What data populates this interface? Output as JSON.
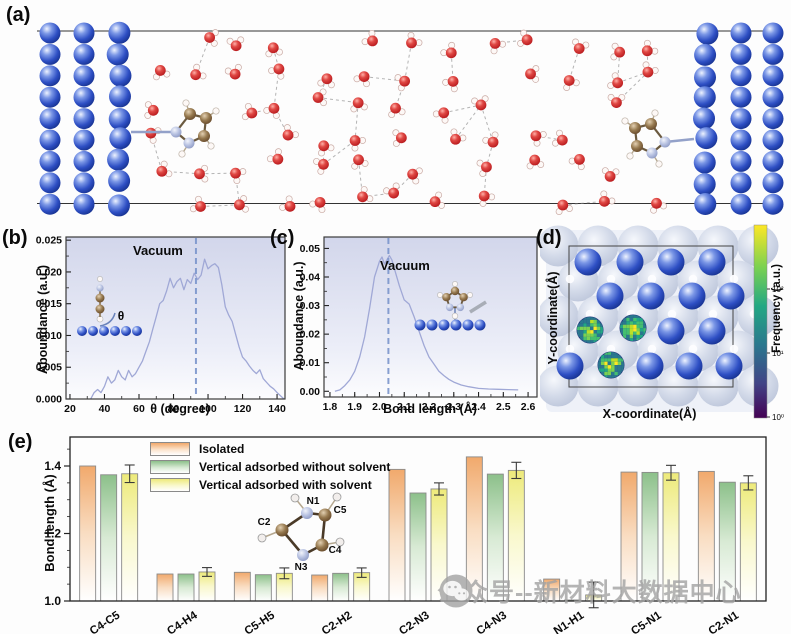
{
  "panels": {
    "a": {
      "label": "(a)"
    },
    "b": {
      "label": "(b)"
    },
    "c": {
      "label": "(c)"
    },
    "d": {
      "label": "(d)"
    },
    "e": {
      "label": "(e)"
    }
  },
  "watermark": {
    "text": "公众号--新材料大数据中心",
    "icon": "wechat-icon"
  },
  "chart_data": [
    {
      "id": "panel-b",
      "type": "line",
      "ylabel": "Aboundance (a.u.)",
      "xlabel": "θ (degree)",
      "annotation": "Vacuum",
      "inset_angle_label": "θ",
      "vline_x": 93,
      "xlim": [
        17.7,
        144.6
      ],
      "ylim": [
        0,
        0.0255
      ],
      "xtick_labels": [
        "20",
        "40",
        "60",
        "80",
        "100",
        "120",
        "140"
      ],
      "ytick_labels": [
        "0.000",
        "0.005",
        "0.010",
        "0.015",
        "0.020",
        "0.025"
      ],
      "x": [
        32,
        34,
        36,
        38,
        40,
        42,
        44,
        46,
        48,
        50,
        52,
        54,
        56,
        58,
        60,
        62,
        64,
        66,
        68,
        70,
        72,
        74,
        76,
        78,
        80,
        82,
        84,
        86,
        88,
        90,
        92,
        94,
        96,
        98,
        100,
        102,
        104,
        106,
        108,
        110,
        112,
        114,
        116,
        118,
        120,
        122,
        124,
        126,
        128,
        130,
        132,
        134,
        136,
        138,
        140,
        142,
        144
      ],
      "y": [
        0,
        0.001,
        0.0015,
        0.001,
        0.002,
        0.0035,
        0.0025,
        0.003,
        0.0045,
        0.0035,
        0.003,
        0.0045,
        0.0035,
        0.004,
        0.005,
        0.006,
        0.0075,
        0.009,
        0.011,
        0.013,
        0.015,
        0.0155,
        0.017,
        0.019,
        0.0175,
        0.0185,
        0.019,
        0.0172,
        0.0188,
        0.0182,
        0.0198,
        0.0188,
        0.0195,
        0.022,
        0.0205,
        0.021,
        0.0213,
        0.0207,
        0.018,
        0.0145,
        0.0132,
        0.0122,
        0.0102,
        0.0082,
        0.0066,
        0.006,
        0.0052,
        0.0045,
        0.004,
        0.0046,
        0.0032,
        0.0026,
        0.002,
        0.0016,
        0.001,
        0.0005,
        0
      ]
    },
    {
      "id": "panel-c",
      "type": "line",
      "ylabel": "Aboundance (a.u.)",
      "xlabel": "Bond length (Å)",
      "annotation": "Vacuum",
      "vline_x": 2.036,
      "xlim": [
        1.776,
        2.636
      ],
      "ylim": [
        -0.002,
        0.054
      ],
      "xtick_labels": [
        "1.8",
        "1.9",
        "2.0",
        "2.1",
        "2.2",
        "2.3",
        "2.4",
        "2.5",
        "2.6"
      ],
      "ytick_labels": [
        "0.00",
        "0.01",
        "0.02",
        "0.03",
        "0.04",
        "0.05"
      ],
      "x": [
        1.82,
        1.84,
        1.86,
        1.88,
        1.9,
        1.92,
        1.94,
        1.96,
        1.98,
        2.0,
        2.01,
        2.02,
        2.03,
        2.04,
        2.05,
        2.06,
        2.08,
        2.1,
        2.12,
        2.14,
        2.16,
        2.18,
        2.2,
        2.22,
        2.24,
        2.26,
        2.28,
        2.3,
        2.33,
        2.36,
        2.4,
        2.44,
        2.48,
        2.52,
        2.56
      ],
      "y": [
        0,
        0.0005,
        0.002,
        0.004,
        0.007,
        0.012,
        0.019,
        0.029,
        0.04,
        0.0455,
        0.047,
        0.0445,
        0.046,
        0.0475,
        0.046,
        0.043,
        0.037,
        0.032,
        0.0305,
        0.026,
        0.021,
        0.016,
        0.012,
        0.0095,
        0.007,
        0.0055,
        0.0042,
        0.0032,
        0.0022,
        0.0016,
        0.001,
        0.0008,
        0.0007,
        0.0006,
        0.0005
      ]
    },
    {
      "id": "panel-d",
      "type": "heatmap",
      "xlabel": "X-coordinate(Å)",
      "ylabel": "Y-coordinate(Å)",
      "colorbar_label": "Frequency (a.u.)",
      "colorbar_ticks": [
        "10²",
        "10¹",
        "10⁰"
      ]
    },
    {
      "id": "panel-e",
      "type": "bar",
      "ylabel": "Bond length (Å)",
      "ylim": [
        1.0,
        1.486
      ],
      "ytick_labels": [
        "1.0",
        "1.2",
        "1.4"
      ],
      "yticks": [
        1.0,
        1.2,
        1.4
      ],
      "categories": [
        "C4-C5",
        "C4-H4",
        "C5-H5",
        "C2-H2",
        "C2-N3",
        "C4-N3",
        "N1-H1",
        "C5-N1",
        "C2-N1"
      ],
      "series": [
        {
          "name": "Isolated",
          "color": "#f1a96c",
          "values": [
            1.4,
            1.08,
            1.085,
            1.077,
            1.39,
            1.427,
            1.065,
            1.382,
            1.384
          ]
        },
        {
          "name": "Vertical adsorbed without solvent",
          "color": "#8cc08a",
          "values": [
            1.374,
            1.08,
            1.078,
            1.082,
            1.32,
            1.376,
            1.003,
            1.381,
            1.352
          ]
        },
        {
          "name": "Vertical adsorbed  with solvent",
          "color": "#edea7a",
          "values": [
            1.377,
            1.086,
            1.082,
            1.084,
            1.332,
            1.387,
            1.018,
            1.38,
            1.35
          ],
          "errors": [
            0.026,
            0.013,
            0.016,
            0.014,
            0.018,
            0.024,
            0.038,
            0.022,
            0.021
          ]
        }
      ],
      "molecule_atom_labels": [
        "N1",
        "C5",
        "C2",
        "C4",
        "N3"
      ]
    }
  ]
}
